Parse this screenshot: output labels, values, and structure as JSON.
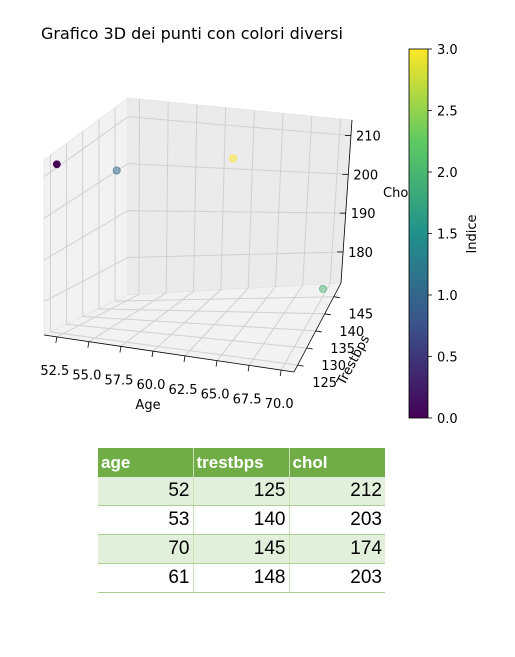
{
  "chart_data": {
    "type": "scatter",
    "title": "Grafico 3D dei punti con colori diversi",
    "xlabel": "Age",
    "ylabel": "Trestbps",
    "zlabel": "Chol",
    "xlim": [
      51.5,
      71.0
    ],
    "ylim": [
      123,
      149
    ],
    "zlim": [
      172,
      214
    ],
    "x_ticks": [
      "52.5",
      "55.0",
      "57.5",
      "60.0",
      "62.5",
      "65.0",
      "67.5",
      "70.0"
    ],
    "y_ticks": [
      "125",
      "130",
      "135",
      "140",
      "145"
    ],
    "z_ticks": [
      "180",
      "190",
      "200",
      "210"
    ],
    "points": [
      {
        "age": 52,
        "trestbps": 125,
        "chol": 212,
        "index": 0
      },
      {
        "age": 53,
        "trestbps": 140,
        "chol": 203,
        "index": 1
      },
      {
        "age": 70,
        "trestbps": 145,
        "chol": 174,
        "index": 2
      },
      {
        "age": 61,
        "trestbps": 148,
        "chol": 203,
        "index": 3
      }
    ],
    "colorbar": {
      "label": "Indice",
      "range": [
        0,
        3
      ],
      "ticks": [
        "0.0",
        "0.5",
        "1.0",
        "1.5",
        "2.0",
        "2.5",
        "3.0"
      ],
      "colormap": [
        "#440154",
        "#3b528b",
        "#21918c",
        "#5ec962",
        "#fde725"
      ]
    }
  },
  "table": {
    "headers": [
      "age",
      "trestbps",
      "chol"
    ],
    "rows": [
      [
        "52",
        "125",
        "212"
      ],
      [
        "53",
        "140",
        "203"
      ],
      [
        "70",
        "145",
        "174"
      ],
      [
        "61",
        "148",
        "203"
      ]
    ]
  },
  "colors": {
    "header_bg": "#70ad47",
    "band_bg": "#e2efda"
  }
}
